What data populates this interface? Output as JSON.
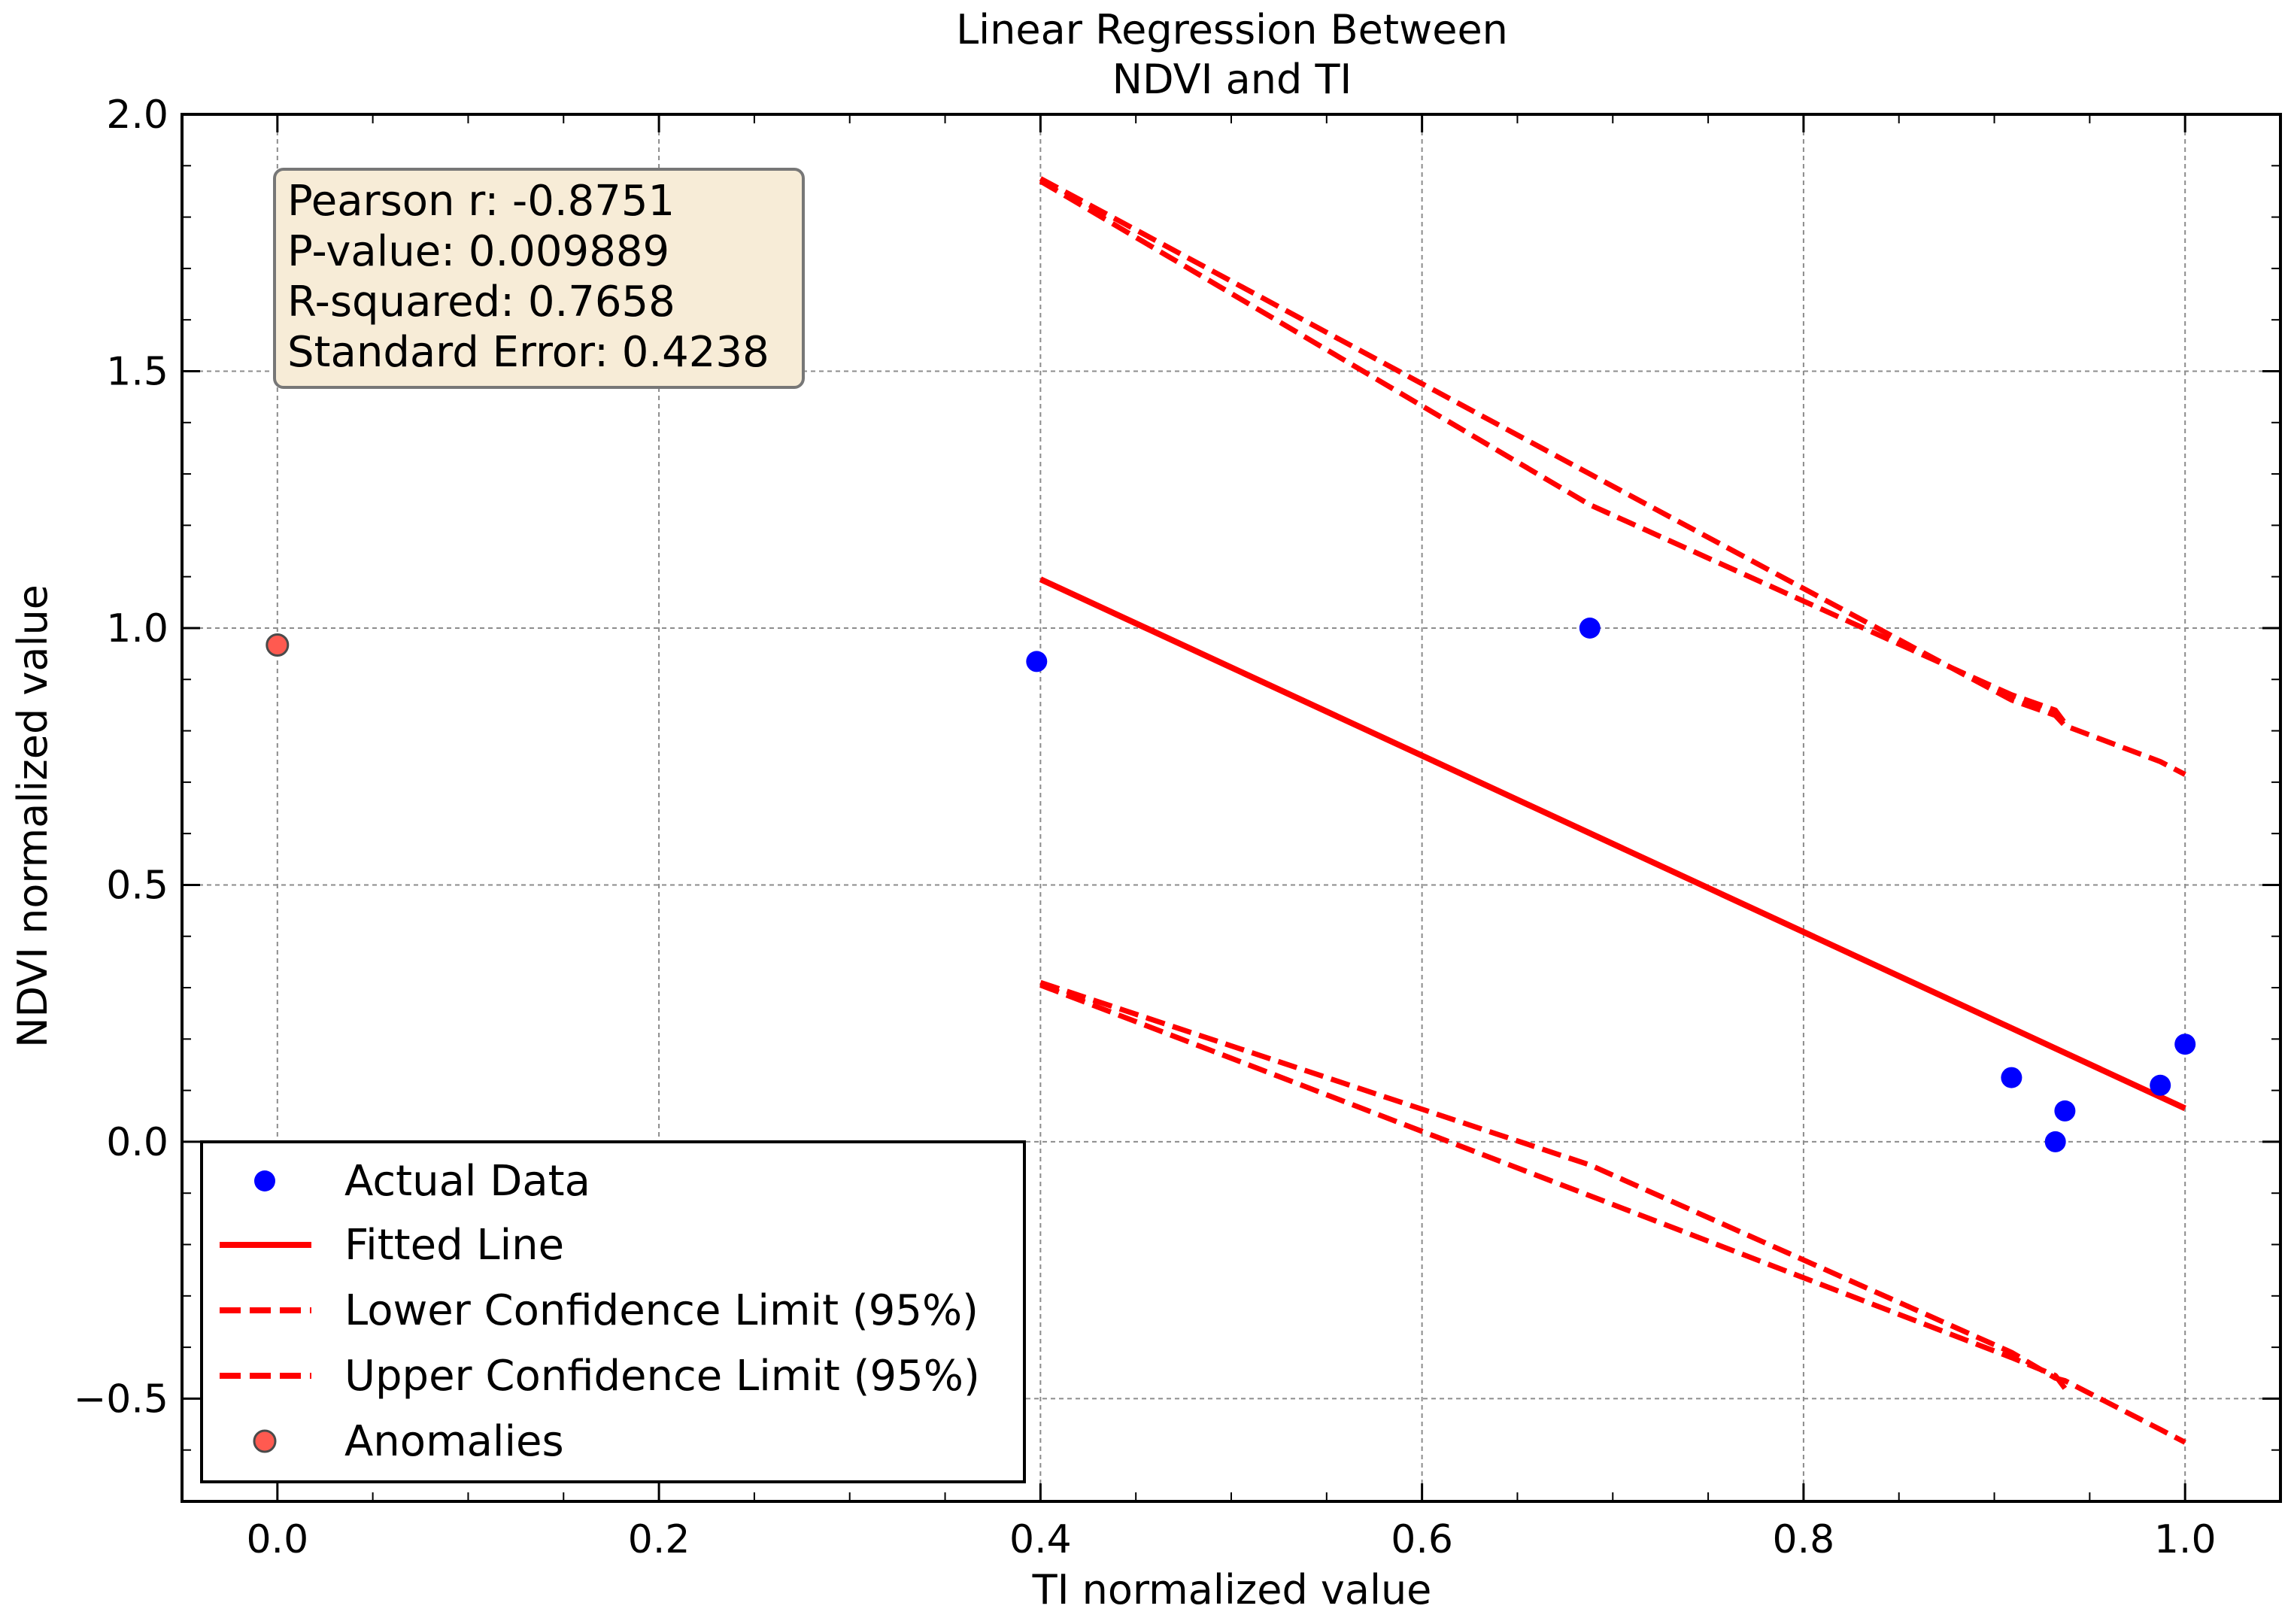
{
  "chart_data": {
    "type": "scatter",
    "title_lines": [
      "Linear Regression Between",
      "NDVI and TI"
    ],
    "xlabel": "TI normalized value",
    "ylabel": "NDVI normalized value",
    "xlim": [
      -0.05,
      1.05
    ],
    "ylim": [
      -0.7,
      2.0
    ],
    "x_ticks": [
      0.0,
      0.2,
      0.4,
      0.6,
      0.8,
      1.0
    ],
    "x_tick_labels": [
      "0.0",
      "0.2",
      "0.4",
      "0.6",
      "0.8",
      "1.0"
    ],
    "y_ticks": [
      -0.5,
      0.0,
      0.5,
      1.0,
      1.5,
      2.0
    ],
    "y_tick_labels": [
      "−0.5",
      "0.0",
      "0.5",
      "1.0",
      "1.5",
      "2.0"
    ],
    "grid": true,
    "stats_box": [
      "Pearson r: -0.8751",
      "P-value: 0.009889",
      "R-squared: 0.7658",
      "Standard Error: 0.4238"
    ],
    "legend_position": "lower-left",
    "colors": {
      "actual": "#0000ff",
      "fit": "#ff0000",
      "anomaly": "#ff5a50",
      "anomaly_edge": "#4a4a4a",
      "stats_box_fill": "#f7ecd7",
      "stats_box_edge": "#777777"
    },
    "series": [
      {
        "name": "Actual Data",
        "kind": "scatter",
        "x": [
          0.398,
          0.688,
          0.909,
          0.932,
          0.937,
          0.987,
          1.0
        ],
        "y": [
          0.935,
          1.0,
          0.125,
          0.0,
          0.06,
          0.11,
          0.19
        ]
      },
      {
        "name": "Fitted Line",
        "kind": "line",
        "style": "solid",
        "x": [
          0.4,
          1.0
        ],
        "y": [
          1.095,
          0.065
        ]
      },
      {
        "name": "Lower Confidence Limit (95%)",
        "kind": "line",
        "style": "dashed",
        "x": [
          0.4,
          0.688,
          0.909,
          0.932,
          0.937,
          0.987,
          1.0
        ],
        "y": [
          0.31,
          -0.045,
          -0.41,
          -0.46,
          -0.465,
          -0.56,
          -0.585
        ]
      },
      {
        "name": "Upper Confidence Limit (95%)",
        "kind": "line",
        "style": "dashed",
        "x": [
          0.4,
          0.688,
          0.909,
          0.932,
          0.937,
          0.987,
          1.0
        ],
        "y": [
          1.875,
          1.3,
          0.86,
          0.83,
          0.81,
          0.74,
          0.715
        ]
      },
      {
        "name": "Lower Confidence Limit (95%)",
        "kind": "line",
        "style": "dashed",
        "x": [
          0.4,
          0.688,
          0.909,
          0.932,
          0.937
        ],
        "y": [
          0.305,
          -0.105,
          -0.42,
          -0.455,
          -0.48
        ]
      },
      {
        "name": "Upper Confidence Limit (95%)",
        "kind": "line",
        "style": "dashed",
        "x": [
          0.4,
          0.688,
          0.909,
          0.932,
          0.937
        ],
        "y": [
          1.87,
          1.24,
          0.87,
          0.84,
          0.815
        ]
      },
      {
        "name": "Anomalies",
        "kind": "scatter",
        "x": [
          0.0
        ],
        "y": [
          0.967
        ]
      }
    ],
    "legend_entries": [
      "Actual Data",
      "Fitted Line",
      "Lower Confidence Limit (95%)",
      "Upper Confidence Limit (95%)",
      "Anomalies"
    ]
  }
}
